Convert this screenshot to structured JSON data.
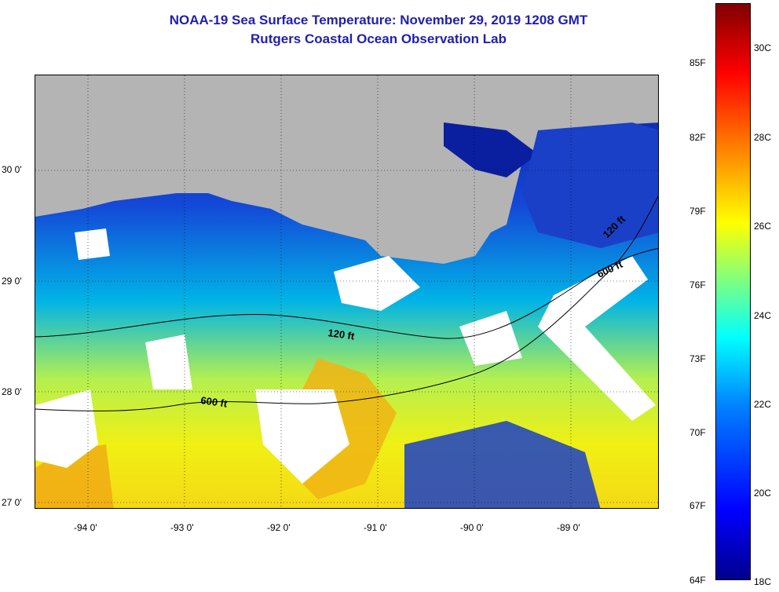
{
  "title_line1": "NOAA-19 Sea Surface Temperature:  November 29, 2019 1208 GMT",
  "title_line2": "Rutgers Coastal Ocean Observation Lab",
  "map": {
    "lat_labels": [
      "30 0'",
      "29 0'",
      "28 0'",
      "27 0'"
    ],
    "lon_labels": [
      "-94 0'",
      "-93 0'",
      "-92 0'",
      "-91 0'",
      "-90 0'",
      "-89 0'"
    ],
    "contours": {
      "isobath_120": "120 ft",
      "isobath_600_a": "600 ft",
      "isobath_600_b": "600 ft",
      "isobath_120_b": "120 ft"
    },
    "colors": {
      "land": "#b4b4b4",
      "cloud": "#ffffff",
      "cold": "#0a1ea0",
      "mid": "#00b4e6",
      "warm": "#f0f014",
      "hot": "#f08c14"
    }
  },
  "colorbar": {
    "fahrenheit_ticks": [
      "85F",
      "82F",
      "79F",
      "76F",
      "73F",
      "70F",
      "67F",
      "64F"
    ],
    "celsius_ticks": [
      "30C",
      "28C",
      "26C",
      "24C",
      "22C",
      "20C",
      "18C"
    ],
    "stops": [
      "#00008c",
      "#0000ff",
      "#0080ff",
      "#00ffff",
      "#80ff80",
      "#ffff00",
      "#ff8000",
      "#ff0000",
      "#800000"
    ]
  }
}
